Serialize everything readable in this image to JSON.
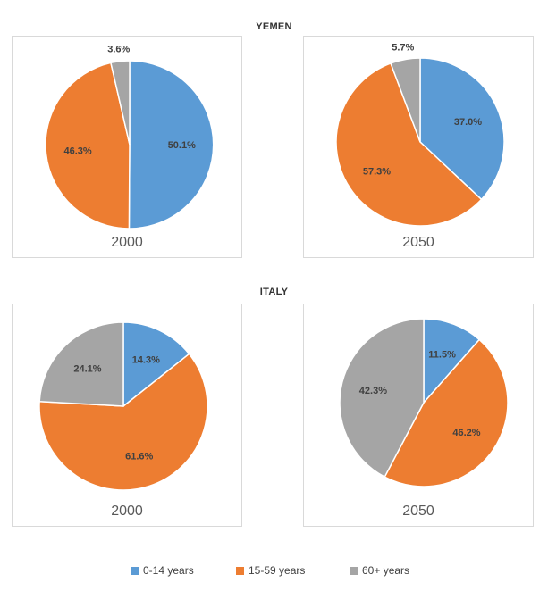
{
  "legend": [
    {
      "label": "0-14 years",
      "color": "#5b9bd5"
    },
    {
      "label": "15-59 years",
      "color": "#ed7d31"
    },
    {
      "label": "60+ years",
      "color": "#a5a5a5"
    }
  ],
  "groups": [
    {
      "title": "YEMEN"
    },
    {
      "title": "ITALY"
    }
  ],
  "chart_data": [
    {
      "type": "pie",
      "group": "YEMEN",
      "title": "2000",
      "categories": [
        "0-14 years",
        "15-59 years",
        "60+ years"
      ],
      "values": [
        50.1,
        46.3,
        3.6
      ],
      "labels": [
        "50.1%",
        "46.3%",
        "3.6%"
      ]
    },
    {
      "type": "pie",
      "group": "YEMEN",
      "title": "2050",
      "categories": [
        "0-14 years",
        "15-59 years",
        "60+ years"
      ],
      "values": [
        37.0,
        57.3,
        5.7
      ],
      "labels": [
        "37.0%",
        "57.3%",
        "5.7%"
      ]
    },
    {
      "type": "pie",
      "group": "ITALY",
      "title": "2000",
      "categories": [
        "0-14 years",
        "15-59 years",
        "60+ years"
      ],
      "values": [
        14.3,
        61.6,
        24.1
      ],
      "labels": [
        "14.3%",
        "61.6%",
        "24.1%"
      ]
    },
    {
      "type": "pie",
      "group": "ITALY",
      "title": "2050",
      "categories": [
        "0-14 years",
        "15-59 years",
        "60+ years"
      ],
      "values": [
        11.5,
        46.2,
        42.3
      ],
      "labels": [
        "11.5%",
        "46.2%",
        "42.3%"
      ]
    }
  ]
}
